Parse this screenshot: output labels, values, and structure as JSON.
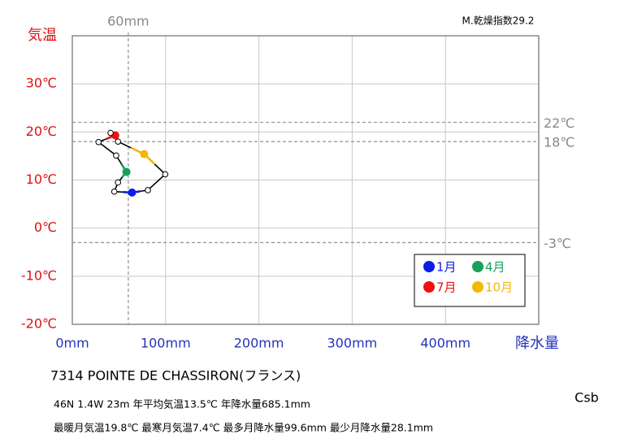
{
  "chart_data": {
    "type": "climograph",
    "title": "7314  POINTE DE CHASSIRON(フランス)",
    "info_lines": [
      "46N  1.4W 23m  年平均気温13.5℃ 年降水量685.1mm",
      "最暖月気温19.8℃ 最寒月気温7.4℃ 最多月降水量99.6mm 最少月降水量28.1mm"
    ],
    "climate_class": "Csb",
    "aridity_index": "M.乾燥指数29.2",
    "x_label": "降水量",
    "y_label": "気温",
    "x": [
      64,
      45,
      49,
      58,
      47,
      28.1,
      46,
      41,
      49,
      77,
      99.6,
      81
    ],
    "series": [
      {
        "values": [
          7.4,
          7.6,
          9.5,
          11.7,
          15.1,
          17.9,
          19.3,
          19.8,
          18.0,
          15.4,
          11.2,
          7.9
        ],
        "colors": [
          "#0a1ee6",
          null,
          null,
          "#1aa05a",
          null,
          null,
          "#f01010",
          null,
          null,
          "#f2b800",
          null,
          null
        ]
      }
    ],
    "legend": [
      {
        "name": "1月",
        "color": "#0a1ee6"
      },
      {
        "name": "4月",
        "color": "#1aa05a"
      },
      {
        "name": "7月",
        "color": "#f01010"
      },
      {
        "name": "10月",
        "color": "#f2b800"
      }
    ],
    "xlim": [
      0,
      500
    ],
    "ylim": [
      -20,
      40
    ],
    "xticks": [
      {
        "value": 0,
        "label": "0mm"
      },
      {
        "value": 100,
        "label": "100mm"
      },
      {
        "value": 200,
        "label": "200mm"
      },
      {
        "value": 300,
        "label": "300mm"
      },
      {
        "value": 400,
        "label": "400mm"
      }
    ],
    "yticks": [
      {
        "value": -20,
        "label": "-20℃"
      },
      {
        "value": -10,
        "label": "-10℃"
      },
      {
        "value": 0,
        "label": "0℃"
      },
      {
        "value": 10,
        "label": "10℃"
      },
      {
        "value": 20,
        "label": "20℃"
      },
      {
        "value": 30,
        "label": "30℃"
      }
    ],
    "vlines": [
      {
        "value": 60,
        "label": "60mm"
      }
    ],
    "hlines": [
      {
        "value": 22,
        "label": "22℃"
      },
      {
        "value": 18,
        "label": "18℃"
      },
      {
        "value": -3,
        "label": "-3℃"
      }
    ],
    "grid": true
  }
}
